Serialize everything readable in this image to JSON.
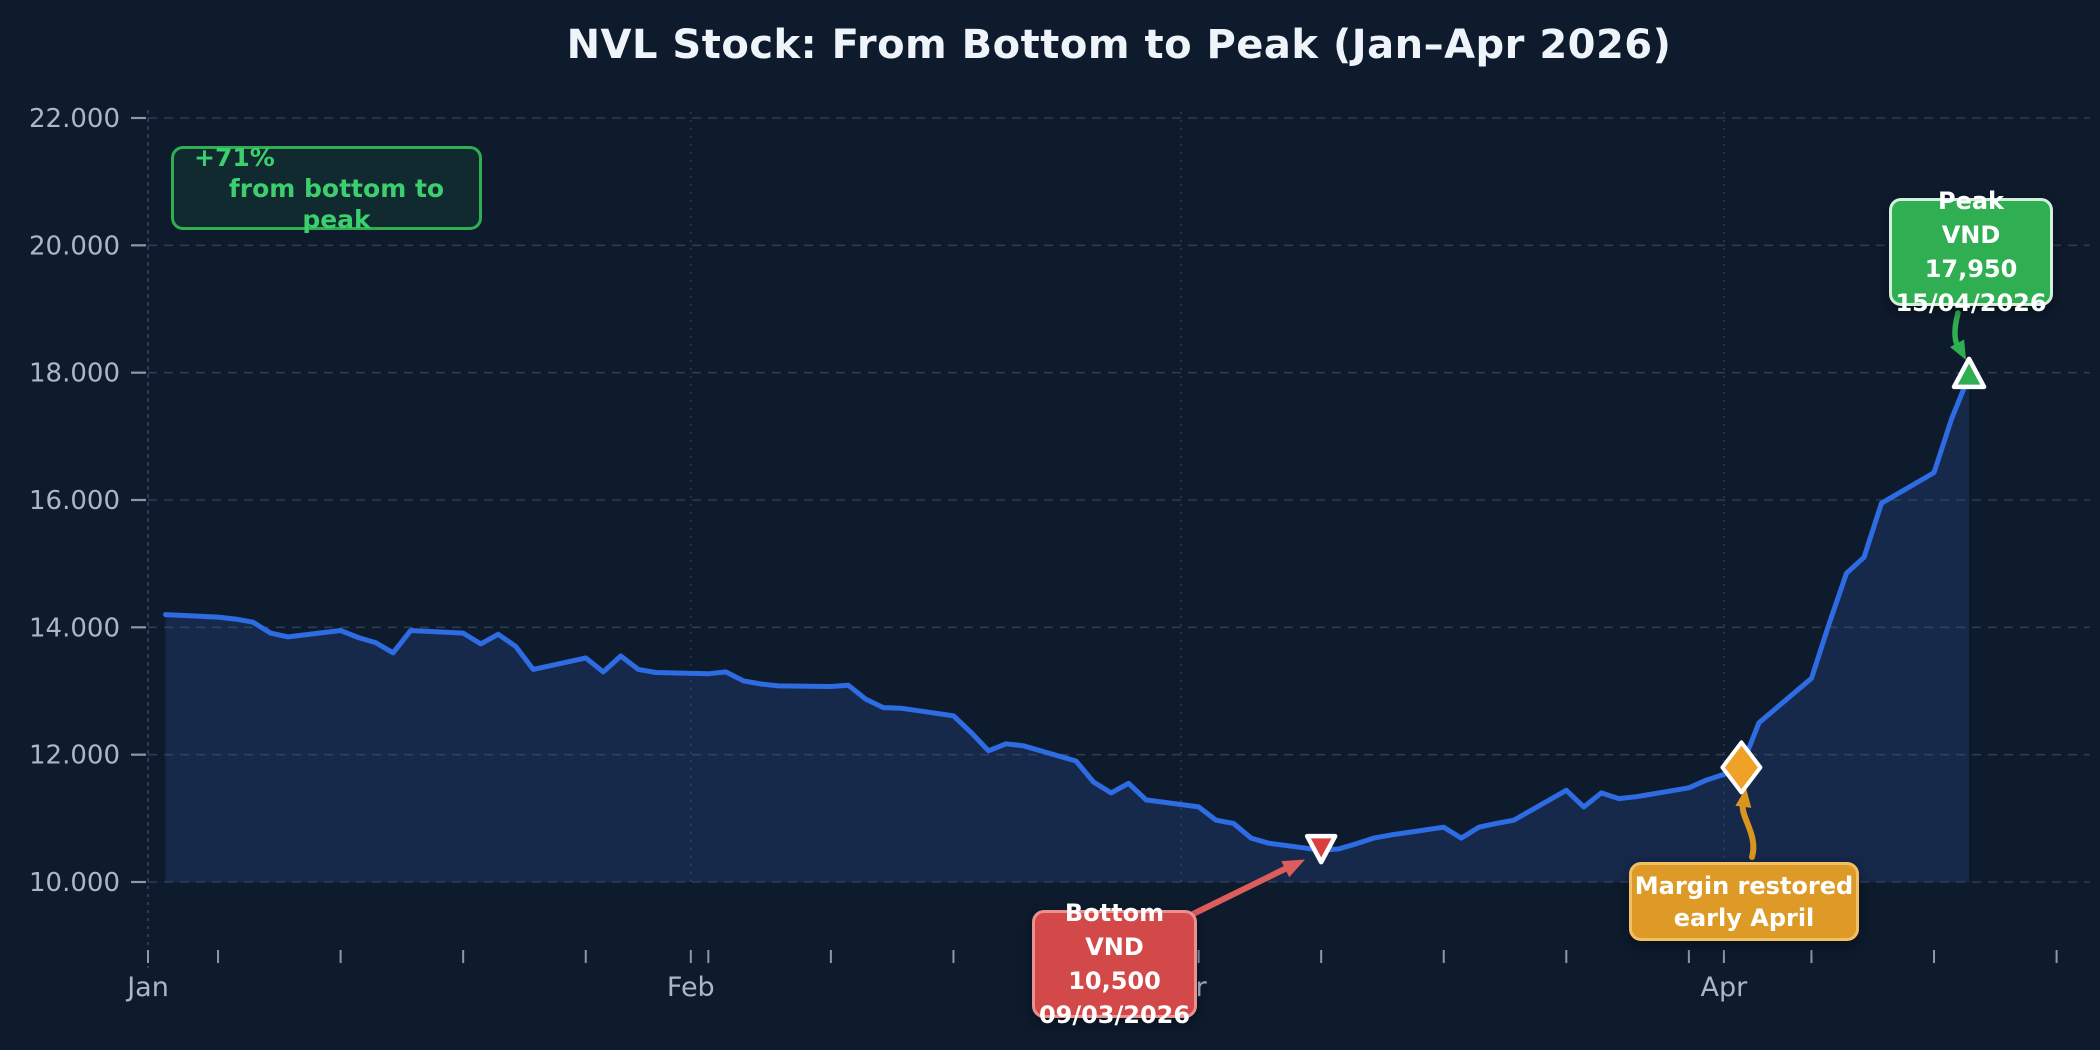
{
  "chart_data": {
    "type": "area",
    "title": "NVL Stock: From Bottom to Peak (Jan–Apr 2026)",
    "xlabel": "",
    "ylabel": "",
    "ylim": [
      10000,
      22000
    ],
    "x_range": [
      "2026-01-01",
      "2026-04-22"
    ],
    "grid": "dashed horizontal at each 2000, dotted vertical at month starts",
    "legend": "none",
    "y_ticks": [
      {
        "label": "22.000",
        "value": 22000
      },
      {
        "label": "20.000",
        "value": 20000
      },
      {
        "label": "18.000",
        "value": 18000
      },
      {
        "label": "16.000",
        "value": 16000
      },
      {
        "label": "14.000",
        "value": 14000
      },
      {
        "label": "12.000",
        "value": 12000
      },
      {
        "label": "10.000",
        "value": 10000
      }
    ],
    "x_ticks": [
      {
        "label": "Jan",
        "date": "2026-01-01"
      },
      {
        "label": "Feb",
        "date": "2026-02-01"
      },
      {
        "label": "Mar",
        "date": "2026-03-01"
      },
      {
        "label": "Apr",
        "date": "2026-04-01"
      }
    ],
    "series": [
      [
        "2026-01-02",
        14200
      ],
      [
        "2026-01-05",
        14160
      ],
      [
        "2026-01-06",
        14130
      ],
      [
        "2026-01-07",
        14080
      ],
      [
        "2026-01-08",
        13910
      ],
      [
        "2026-01-09",
        13850
      ],
      [
        "2026-01-12",
        13950
      ],
      [
        "2026-01-13",
        13840
      ],
      [
        "2026-01-14",
        13760
      ],
      [
        "2026-01-15",
        13600
      ],
      [
        "2026-01-16",
        13950
      ],
      [
        "2026-01-19",
        13910
      ],
      [
        "2026-01-20",
        13740
      ],
      [
        "2026-01-21",
        13890
      ],
      [
        "2026-01-22",
        13700
      ],
      [
        "2026-01-23",
        13340
      ],
      [
        "2026-01-26",
        13520
      ],
      [
        "2026-01-27",
        13300
      ],
      [
        "2026-01-28",
        13550
      ],
      [
        "2026-01-29",
        13340
      ],
      [
        "2026-01-30",
        13290
      ],
      [
        "2026-02-02",
        13270
      ],
      [
        "2026-02-03",
        13300
      ],
      [
        "2026-02-04",
        13160
      ],
      [
        "2026-02-05",
        13110
      ],
      [
        "2026-02-06",
        13080
      ],
      [
        "2026-02-09",
        13070
      ],
      [
        "2026-02-10",
        13090
      ],
      [
        "2026-02-11",
        12870
      ],
      [
        "2026-02-12",
        12740
      ],
      [
        "2026-02-13",
        12730
      ],
      [
        "2026-02-16",
        12610
      ],
      [
        "2026-02-17",
        12350
      ],
      [
        "2026-02-18",
        12060
      ],
      [
        "2026-02-19",
        12170
      ],
      [
        "2026-02-20",
        12140
      ],
      [
        "2026-02-23",
        11900
      ],
      [
        "2026-02-24",
        11570
      ],
      [
        "2026-02-25",
        11400
      ],
      [
        "2026-02-26",
        11550
      ],
      [
        "2026-02-27",
        11290
      ],
      [
        "2026-03-02",
        11180
      ],
      [
        "2026-03-03",
        10970
      ],
      [
        "2026-03-04",
        10920
      ],
      [
        "2026-03-05",
        10690
      ],
      [
        "2026-03-06",
        10610
      ],
      [
        "2026-03-09",
        10500
      ],
      [
        "2026-03-10",
        10520
      ],
      [
        "2026-03-11",
        10600
      ],
      [
        "2026-03-12",
        10690
      ],
      [
        "2026-03-13",
        10740
      ],
      [
        "2026-03-16",
        10860
      ],
      [
        "2026-03-17",
        10690
      ],
      [
        "2026-03-18",
        10860
      ],
      [
        "2026-03-19",
        10920
      ],
      [
        "2026-03-20",
        10970
      ],
      [
        "2026-03-23",
        11440
      ],
      [
        "2026-03-24",
        11180
      ],
      [
        "2026-03-25",
        11400
      ],
      [
        "2026-03-26",
        11310
      ],
      [
        "2026-03-27",
        11340
      ],
      [
        "2026-03-30",
        11480
      ],
      [
        "2026-03-31",
        11600
      ],
      [
        "2026-04-01",
        11690
      ],
      [
        "2026-04-02",
        11800
      ],
      [
        "2026-04-03",
        12500
      ],
      [
        "2026-04-06",
        13200
      ],
      [
        "2026-04-07",
        14050
      ],
      [
        "2026-04-08",
        14850
      ],
      [
        "2026-04-09",
        15100
      ],
      [
        "2026-04-10",
        15950
      ],
      [
        "2026-04-13",
        16430
      ],
      [
        "2026-04-14",
        17270
      ],
      [
        "2026-04-15",
        17950
      ]
    ],
    "annotations": {
      "growth": {
        "lines": [
          "+71%",
          "from bottom to peak"
        ]
      },
      "peak": {
        "lines": [
          "Peak",
          "VND 17,950",
          "15/04/2026"
        ],
        "date": "2026-04-15",
        "value": 17950,
        "marker": "triangle-up"
      },
      "bottom": {
        "lines": [
          "Bottom",
          "VND 10,500",
          "09/03/2026"
        ],
        "date": "2026-03-09",
        "value": 10500,
        "marker": "triangle-down"
      },
      "margin": {
        "lines": [
          "Margin restored",
          "early April"
        ],
        "date": "2026-04-02",
        "value": 11800,
        "marker": "diamond"
      }
    },
    "colors": {
      "background": "#0e1b2d",
      "line": "#2e6ce4",
      "area_fill": "#16294b",
      "grid": "#45566e",
      "month_grid": "#33445c",
      "axis_text": "#a9b7c6",
      "tick_mark": "#8b99aa",
      "title_text": "#eef4fa",
      "green": "#2fae52",
      "green_text": "#3bcf6d",
      "red": "#d34848",
      "red_marker": "#d93f3f",
      "red_arrow": "#dd5c5c",
      "orange": "#dd9a26",
      "orange_marker": "#f0a228",
      "orange_arrow": "#d9951f",
      "marker_stroke": "#ffffff"
    }
  }
}
